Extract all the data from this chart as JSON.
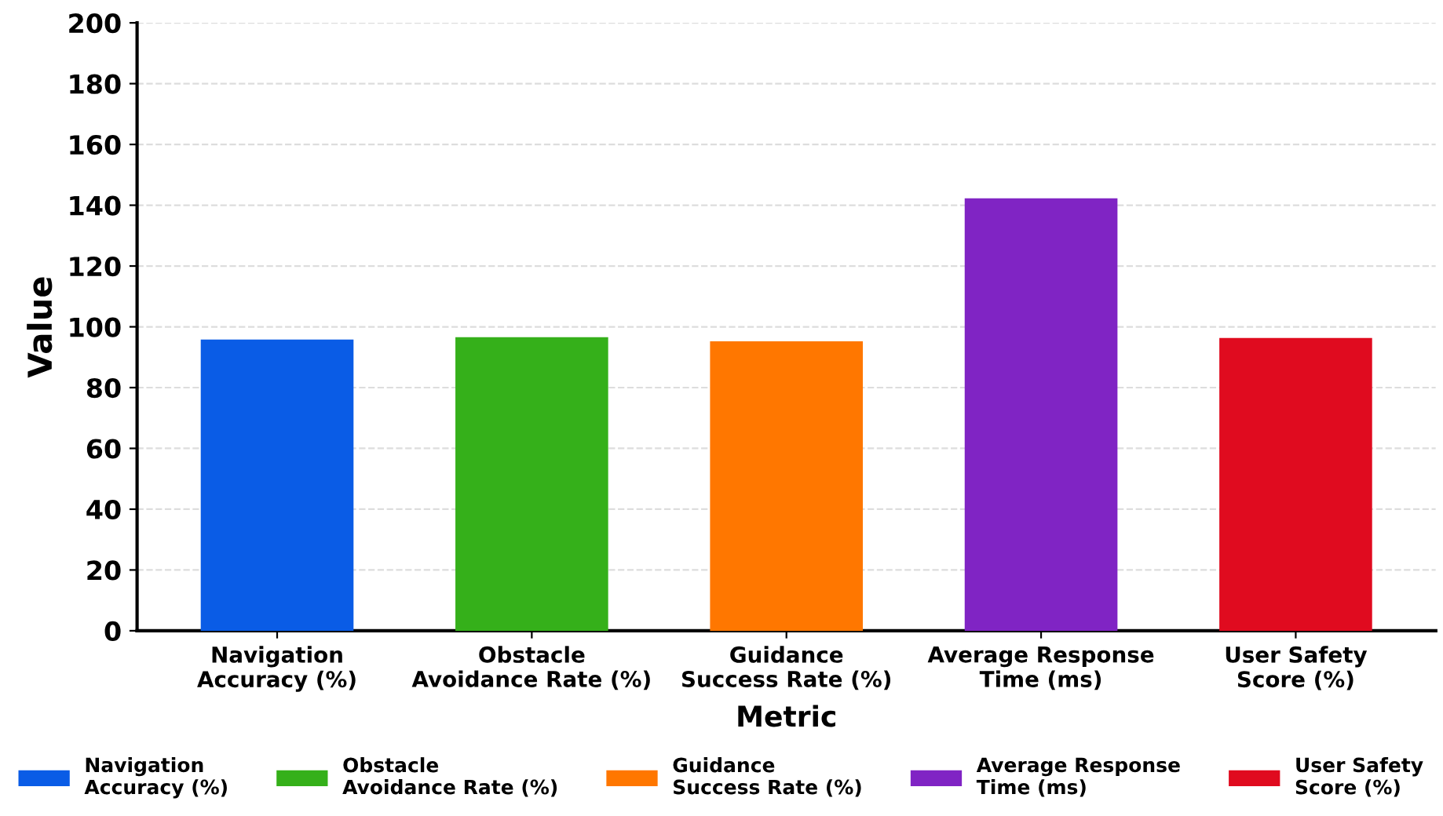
{
  "chart_data": {
    "type": "bar",
    "xlabel": "Metric",
    "ylabel": "Value",
    "categories": [
      "Navigation\nAccuracy (%)",
      "Obstacle\nAvoidance Rate (%)",
      "Guidance\nSuccess Rate (%)",
      "Average Response\nTime (ms)",
      "User Safety\nScore (%)"
    ],
    "series": [
      {
        "name": "Navigation\nAccuracy (%)",
        "color": "#0a5ce6",
        "values": [
          95.8,
          null,
          null,
          null,
          null
        ]
      },
      {
        "name": "Obstacle\nAvoidance Rate (%)",
        "color": "#35b01a",
        "values": [
          null,
          96.6,
          null,
          null,
          null
        ]
      },
      {
        "name": "Guidance\nSuccess Rate (%)",
        "color": "#ff7700",
        "values": [
          null,
          null,
          95.2,
          null,
          null
        ]
      },
      {
        "name": "Average Response\nTime (ms)",
        "color": "#8024c4",
        "values": [
          null,
          null,
          null,
          142.3,
          null
        ]
      },
      {
        "name": "User Safety\nScore (%)",
        "color": "#e00b1f",
        "values": [
          null,
          null,
          null,
          null,
          96.3
        ]
      }
    ],
    "ylim": [
      0,
      200
    ],
    "yticks": [
      0,
      20,
      40,
      60,
      80,
      100,
      120,
      140,
      160,
      180,
      200
    ],
    "grid": "y",
    "legend": "bottom"
  }
}
